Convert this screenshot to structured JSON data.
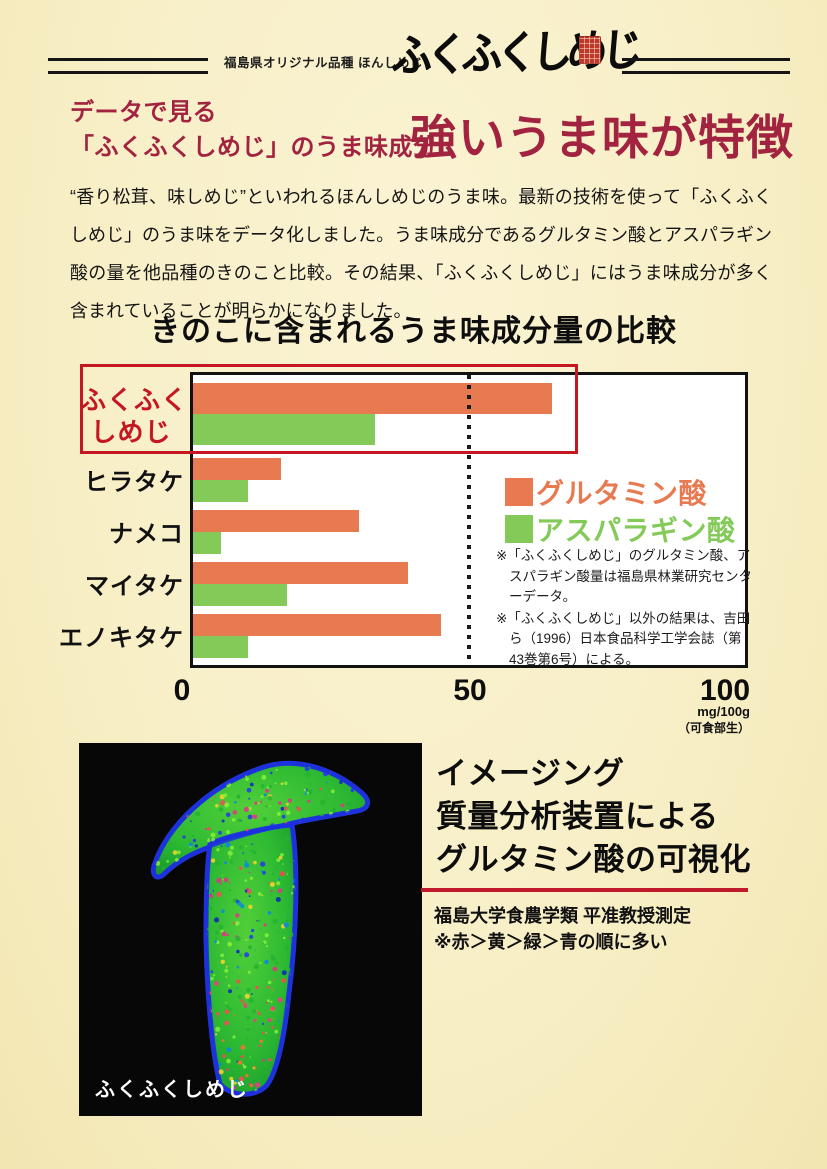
{
  "header": {
    "region_label": "福島県オリジナル品種 ほんしめじ",
    "brand_logo": "ふくふくしめじ"
  },
  "intro": {
    "eyebrow_line1": "データで見る",
    "eyebrow_line2": "「ふくふくしめじ」のうま味成分",
    "headline": "強いうま味が特徴",
    "body": "“香り松茸、味しめじ”といわれるほんしめじのうま味。最新の技術を使って「ふくふくしめじ」のうま味をデータ化しました。うま味成分であるグルタミン酸とアスパラギン酸の量を他品種のきのこと比較。その結果、「ふくふくしめじ」にはうま味成分が多く含まれていることが明らかになりました。"
  },
  "chart_data": {
    "type": "bar",
    "orientation": "horizontal",
    "title": "きのこに含まれるうま味成分量の比較",
    "categories": [
      "ふくふくしめじ",
      "ヒラタケ",
      "ナメコ",
      "マイタケ",
      "エノキタケ"
    ],
    "series": [
      {
        "name": "グルタミン酸",
        "color": "#e87a52",
        "values": [
          65,
          16,
          30,
          39,
          45
        ]
      },
      {
        "name": "アスパラギン酸",
        "color": "#84ca58",
        "values": [
          33,
          10,
          5,
          17,
          10
        ]
      }
    ],
    "xlim": [
      0,
      100
    ],
    "x_ticks": [
      "0",
      "50",
      "100"
    ],
    "x_unit": "mg/100g",
    "x_unit_note": "（可食部生）",
    "reference_line_x": 50,
    "highlight_category": "ふくふくしめじ",
    "legend_position": "inside-right",
    "grid": false,
    "notes": [
      "※「ふくふくしめじ」のグルタミン酸、アスパラギン酸量は福島県林業研究センターデータ。",
      "※「ふくふくしめじ」以外の結果は、吉田ら（1996）日本食品科学工学会誌（第43巻第6号）による。"
    ]
  },
  "imaging_section": {
    "heading_line1": "イメージング",
    "heading_line2": "質量分析装置による",
    "heading_line3": "グルタミン酸の可視化",
    "credit": "福島大学食農学類 平准教授測定",
    "color_note": "※赤＞黄＞緑＞青の順に多い",
    "photo_label": "ふくふくしめじ"
  },
  "colors": {
    "paper": "#f8efc7",
    "dark_red_text": "#a22340",
    "accent_red": "#c41722",
    "bar_glutamate": "#e87a52",
    "bar_aspartate": "#84ca58",
    "ink": "#141414"
  }
}
